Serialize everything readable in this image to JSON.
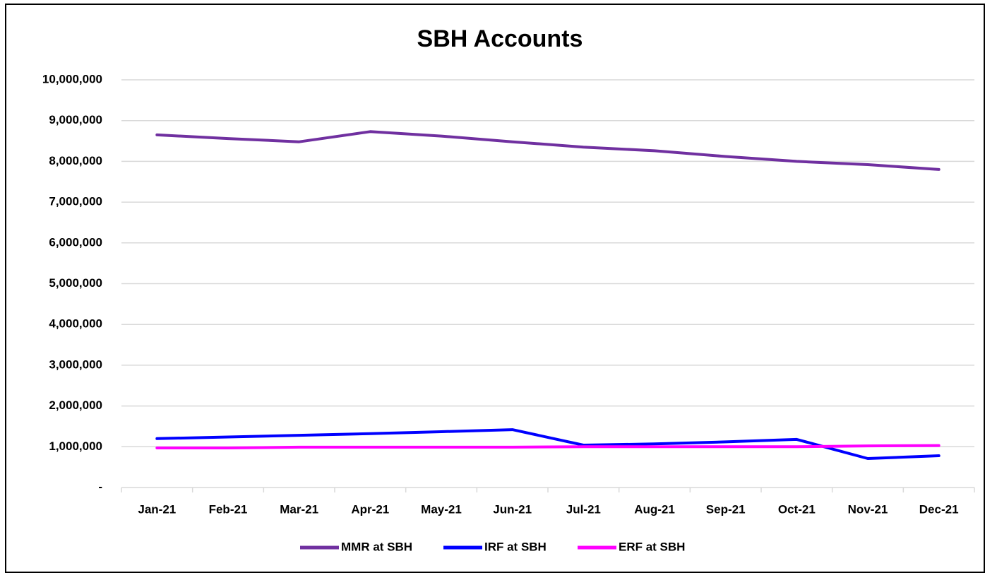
{
  "chart_data": {
    "type": "line",
    "title": "SBH Accounts",
    "categories": [
      "Jan-21",
      "Feb-21",
      "Mar-21",
      "Apr-21",
      "May-21",
      "Jun-21",
      "Jul-21",
      "Aug-21",
      "Sep-21",
      "Oct-21",
      "Nov-21",
      "Dec-21"
    ],
    "series": [
      {
        "name": "MMR at SBH",
        "color": "#7030a0",
        "values": [
          8650000,
          8560000,
          8480000,
          8730000,
          8620000,
          8480000,
          8350000,
          8260000,
          8120000,
          8000000,
          7920000,
          7800000
        ]
      },
      {
        "name": "IRF at SBH",
        "color": "#0000ff",
        "values": [
          1200000,
          1240000,
          1280000,
          1320000,
          1370000,
          1420000,
          1040000,
          1070000,
          1120000,
          1180000,
          710000,
          780000
        ]
      },
      {
        "name": "ERF at SBH",
        "color": "#ff00ff",
        "values": [
          970000,
          970000,
          990000,
          990000,
          990000,
          990000,
          1000000,
          1000000,
          1000000,
          1000000,
          1020000,
          1030000
        ]
      }
    ],
    "ylim": [
      0,
      10000000
    ],
    "yticks": [
      {
        "value": 0,
        "label": "-"
      },
      {
        "value": 1000000,
        "label": "1,000,000"
      },
      {
        "value": 2000000,
        "label": "2,000,000"
      },
      {
        "value": 3000000,
        "label": "3,000,000"
      },
      {
        "value": 4000000,
        "label": "4,000,000"
      },
      {
        "value": 5000000,
        "label": "5,000,000"
      },
      {
        "value": 6000000,
        "label": "6,000,000"
      },
      {
        "value": 7000000,
        "label": "7,000,000"
      },
      {
        "value": 8000000,
        "label": "8,000,000"
      },
      {
        "value": 9000000,
        "label": "9,000,000"
      },
      {
        "value": 10000000,
        "label": "10,000,000"
      }
    ],
    "grid": true,
    "legend": "bottom"
  }
}
